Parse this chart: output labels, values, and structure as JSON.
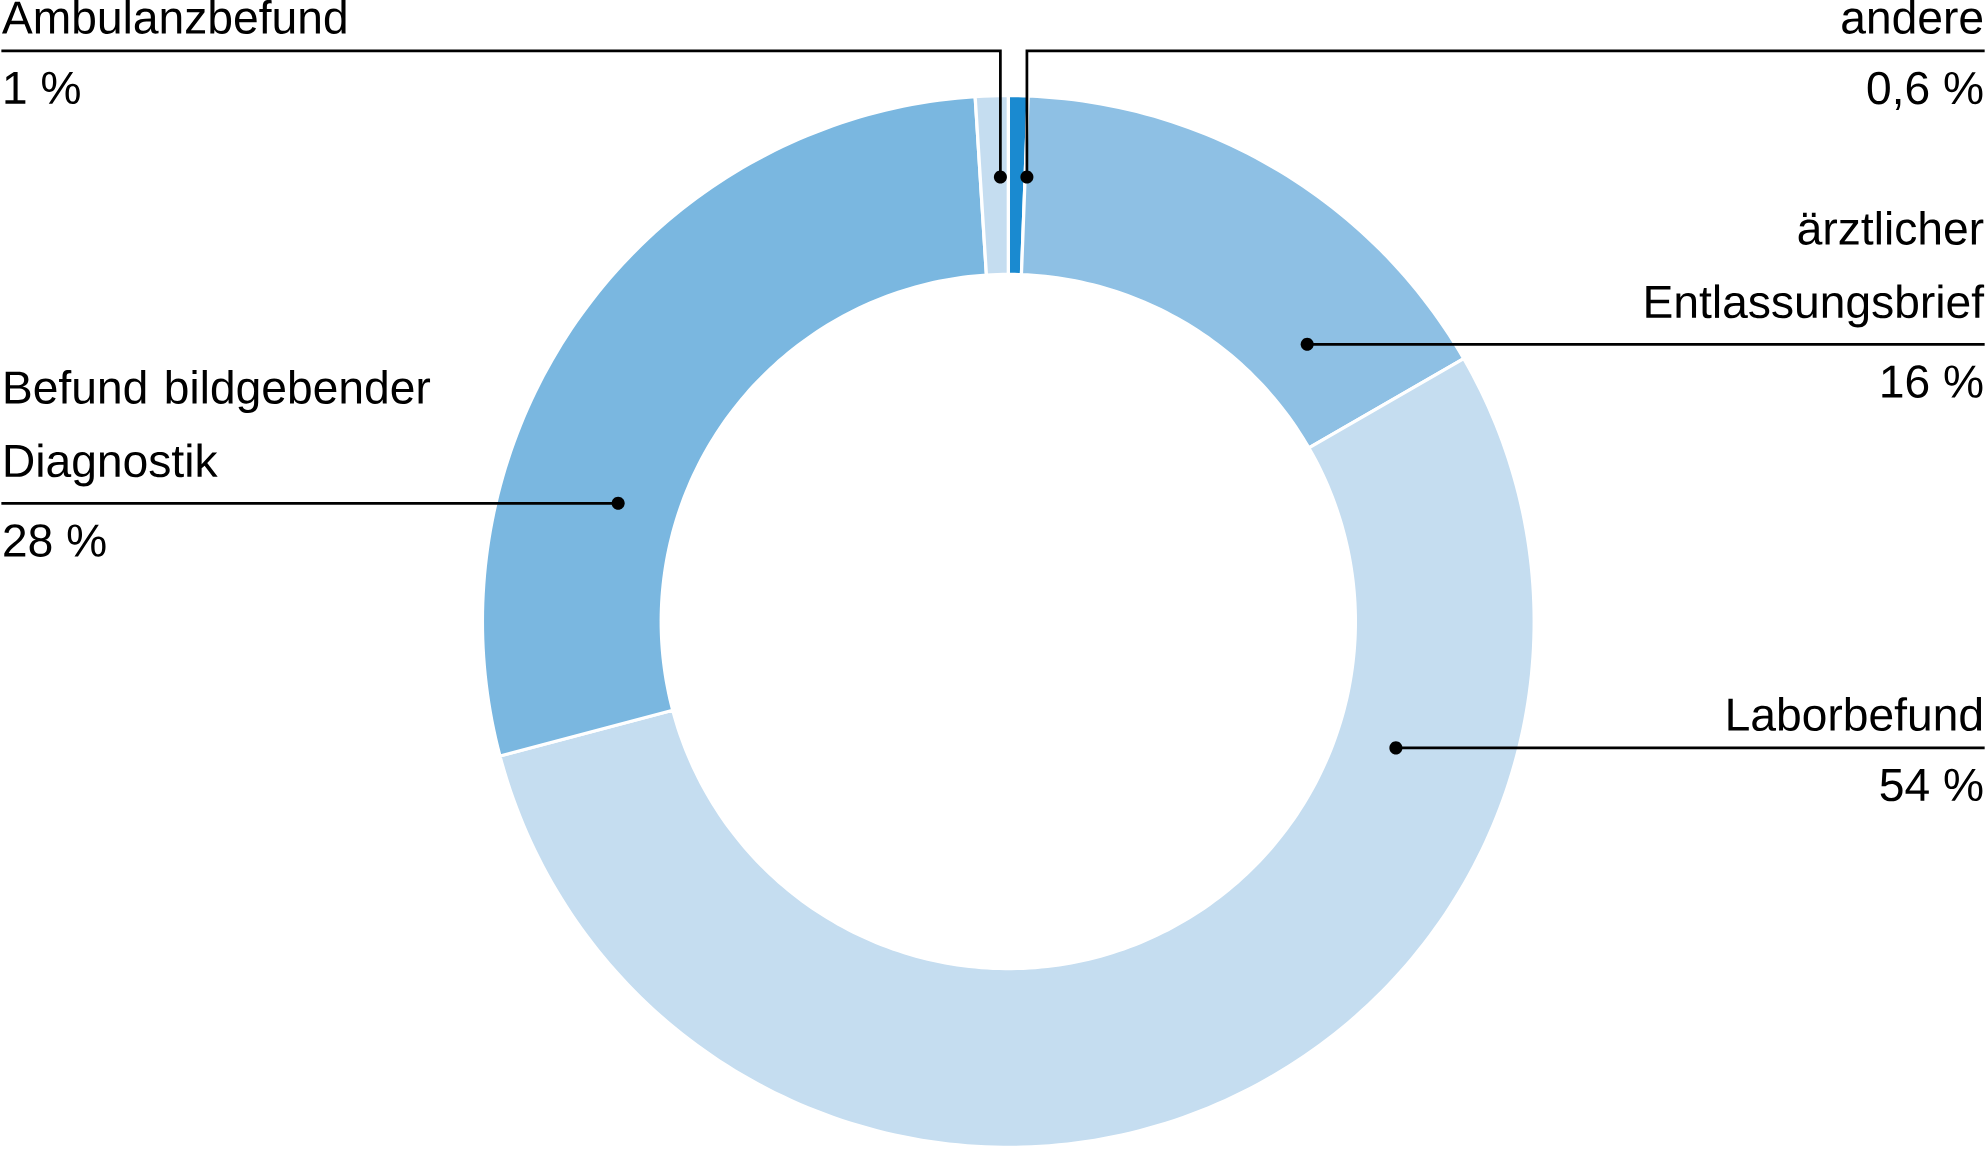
{
  "chart_data": {
    "type": "donut",
    "categories": [
      "andere",
      "ärztlicher Entlassungsbrief",
      "Laborbefund",
      "Befund bildgebender Diagnostik",
      "Ambulanzbefund"
    ],
    "values": [
      0.6,
      16,
      54,
      28,
      1
    ],
    "value_labels": [
      "0,6 %",
      "16 %",
      "54 %",
      "28 %",
      "1 %"
    ],
    "colors": [
      "#1a8ad0",
      "#8ec0e4",
      "#c5ddf0",
      "#7ab7e0",
      "#c5ddf0"
    ]
  }
}
